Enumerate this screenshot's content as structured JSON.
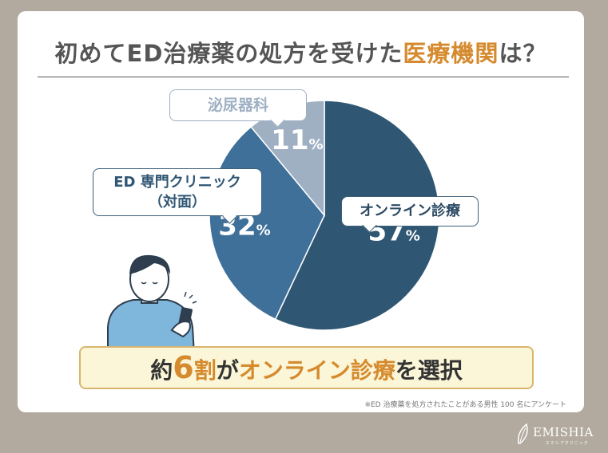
{
  "title": {
    "part1": "初めてED治療薬の処方を受けた",
    "highlight": "医療機関",
    "part2": "は？"
  },
  "chart_data": {
    "type": "pie",
    "slices": [
      {
        "label": "オンライン診療",
        "value": 57,
        "display": "57",
        "color": "#2f5673"
      },
      {
        "label": "ED 専門クリニック（対面）",
        "value": 32,
        "display": "32",
        "color": "#3f709a"
      },
      {
        "label": "泌尿器科",
        "value": 11,
        "display": "11",
        "color": "#9fb0c3"
      }
    ],
    "unit": "%"
  },
  "bubbles": {
    "online": "オンライン診療",
    "ed_line1": "ED 専門クリニック",
    "ed_line2": "（対面）",
    "urology": "泌尿器科"
  },
  "banner": {
    "p1": "約",
    "p2": "6",
    "p3": "割",
    "p4": "が",
    "p5": "オンライン診療",
    "p6": "を選択"
  },
  "footnote": "※ED 治療薬を処方されたことがある男性 100 名にアンケート",
  "logo": {
    "name": "EMISHIA",
    "sub": "エミシアクリニック"
  }
}
